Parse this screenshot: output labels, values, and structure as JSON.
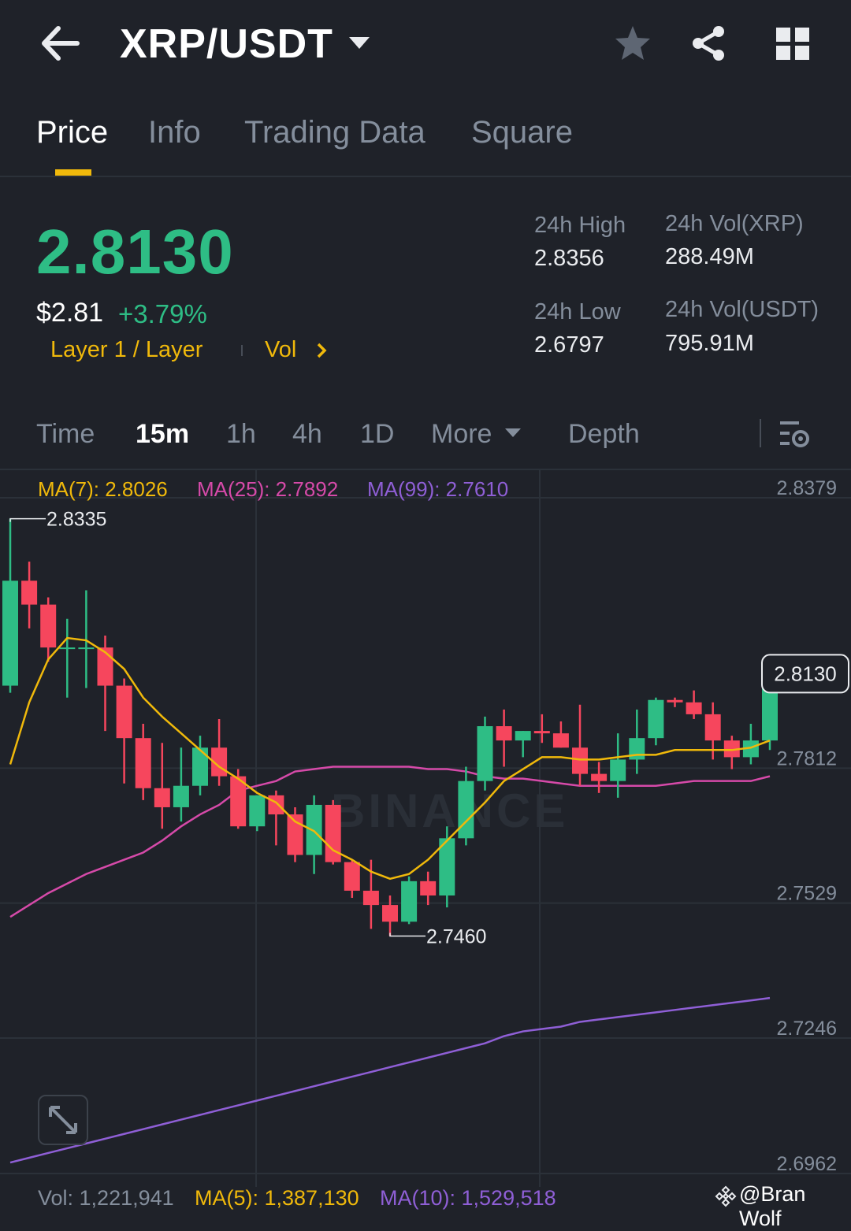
{
  "header": {
    "pair": "XRP/USDT"
  },
  "tabs": [
    {
      "label": "Price",
      "active": true
    },
    {
      "label": "Info",
      "active": false
    },
    {
      "label": "Trading Data",
      "active": false
    },
    {
      "label": "Square",
      "active": false
    }
  ],
  "ticker": {
    "last_price": "2.8130",
    "usd_price": "$2.81",
    "change_pct": "+3.79%",
    "tag_layer": "Layer 1 / Layer",
    "tag_vol": "Vol",
    "high_label": "24h High",
    "high_value": "2.8356",
    "low_label": "24h Low",
    "low_value": "2.6797",
    "vol_xrp_label": "24h Vol(XRP)",
    "vol_xrp_value": "288.49M",
    "vol_usdt_label": "24h Vol(USDT)",
    "vol_usdt_value": "795.91M"
  },
  "timeframes": {
    "time": "Time",
    "m15": "15m",
    "h1": "1h",
    "h4": "4h",
    "d1": "1D",
    "more": "More",
    "depth": "Depth",
    "active": "15m"
  },
  "indicators": {
    "ma7": "MA(7): 2.8026",
    "ma25": "MA(25): 2.7892",
    "ma99": "MA(99): 2.7610",
    "vol": "Vol: 1,221,941",
    "vol_ma5": "MA(5): 1,387,130",
    "vol_ma10": "MA(10): 1,529,518"
  },
  "colors": {
    "up": "#2ebd85",
    "down": "#f6465d",
    "accent": "#f0b90b",
    "ma7": "#f0b90b",
    "ma25": "#d64aa9",
    "ma99": "#8f5fd6"
  },
  "watermark": "BINANCE",
  "credit": "@Bran Wolf",
  "chart_data": {
    "type": "candlestick",
    "interval": "15m",
    "y_ticks": [
      2.8379,
      2.7812,
      2.7529,
      2.7246,
      2.6962
    ],
    "ylim": [
      2.6962,
      2.8379
    ],
    "current_price_label": "2.8130",
    "high_marker": "2.8335",
    "low_marker": "2.7460",
    "candles": [
      [
        2.7985,
        2.8335,
        2.797,
        2.8205
      ],
      [
        2.8205,
        2.8245,
        2.8105,
        2.8155
      ],
      [
        2.8155,
        2.817,
        2.8035,
        2.8065
      ],
      [
        2.8065,
        2.8125,
        2.796,
        2.8065
      ],
      [
        2.8065,
        2.8185,
        2.798,
        2.8065
      ],
      [
        2.8065,
        2.809,
        2.789,
        2.7985
      ],
      [
        2.7985,
        2.8,
        2.778,
        2.7875
      ],
      [
        2.7875,
        2.7905,
        2.7745,
        2.777
      ],
      [
        2.777,
        2.7865,
        2.7685,
        2.773
      ],
      [
        2.773,
        2.7855,
        2.77,
        2.7775
      ],
      [
        2.7775,
        2.788,
        2.7755,
        2.7855
      ],
      [
        2.7855,
        2.7915,
        2.7775,
        2.7795
      ],
      [
        2.7795,
        2.781,
        2.7685,
        2.769
      ],
      [
        2.769,
        2.7755,
        2.768,
        2.7755
      ],
      [
        2.7755,
        2.7765,
        2.765,
        2.7715
      ],
      [
        2.7715,
        2.773,
        2.7615,
        2.763
      ],
      [
        2.763,
        2.7755,
        2.759,
        2.7735
      ],
      [
        2.7735,
        2.7745,
        2.761,
        2.7615
      ],
      [
        2.7615,
        2.762,
        2.754,
        2.7555
      ],
      [
        2.7555,
        2.762,
        2.7475,
        2.7525
      ],
      [
        2.7525,
        2.7545,
        2.746,
        2.749
      ],
      [
        2.749,
        2.7585,
        2.7485,
        2.7575
      ],
      [
        2.7575,
        2.7595,
        2.7525,
        2.7545
      ],
      [
        2.7545,
        2.769,
        2.752,
        2.7665
      ],
      [
        2.7665,
        2.7815,
        2.765,
        2.7785
      ],
      [
        2.7785,
        2.792,
        2.7765,
        2.79
      ],
      [
        2.79,
        2.7935,
        2.7815,
        2.787
      ],
      [
        2.787,
        2.789,
        2.7835,
        2.789
      ],
      [
        2.789,
        2.7925,
        2.7865,
        2.7885
      ],
      [
        2.7885,
        2.791,
        2.7855,
        2.7855
      ],
      [
        2.7855,
        2.7945,
        2.7775,
        2.78
      ],
      [
        2.78,
        2.7825,
        2.776,
        2.7785
      ],
      [
        2.7785,
        2.7885,
        2.775,
        2.783
      ],
      [
        2.783,
        2.7935,
        2.78,
        2.7875
      ],
      [
        2.7875,
        2.796,
        2.786,
        2.7955
      ],
      [
        2.7955,
        2.796,
        2.794,
        2.795
      ],
      [
        2.795,
        2.7975,
        2.7915,
        2.7925
      ],
      [
        2.7925,
        2.795,
        2.783,
        2.787
      ],
      [
        2.787,
        2.788,
        2.781,
        2.7835
      ],
      [
        2.7835,
        2.7905,
        2.782,
        2.787
      ],
      [
        2.787,
        2.802,
        2.785,
        2.801
      ]
    ],
    "ma7": [
      2.782,
      2.795,
      2.804,
      2.8085,
      2.808,
      2.8055,
      2.802,
      2.796,
      2.792,
      2.7885,
      2.785,
      2.7815,
      2.779,
      2.776,
      2.774,
      2.77,
      2.768,
      2.764,
      2.762,
      2.7595,
      2.758,
      2.759,
      2.762,
      2.766,
      2.77,
      2.774,
      2.7785,
      2.781,
      2.7835,
      2.7835,
      2.783,
      2.783,
      2.7835,
      2.784,
      2.784,
      2.785,
      2.785,
      2.785,
      2.785,
      2.7855,
      2.787
    ],
    "ma25": [
      2.75,
      2.7525,
      2.755,
      2.757,
      2.759,
      2.7605,
      2.762,
      2.7635,
      2.766,
      2.769,
      2.7715,
      2.7735,
      2.7765,
      2.7775,
      2.7785,
      2.7805,
      2.781,
      2.7815,
      2.7815,
      2.7815,
      2.7815,
      2.7815,
      2.781,
      2.781,
      2.7805,
      2.7795,
      2.779,
      2.779,
      2.7785,
      2.778,
      2.7775,
      2.7775,
      2.7775,
      2.7775,
      2.7775,
      2.778,
      2.7785,
      2.7785,
      2.7785,
      2.7785,
      2.7795
    ],
    "ma99": [
      2.6985,
      2.6995,
      2.7005,
      2.7015,
      2.7025,
      2.7035,
      2.7045,
      2.7055,
      2.7065,
      2.7075,
      2.7085,
      2.7095,
      2.7105,
      2.7115,
      2.7125,
      2.7135,
      2.7145,
      2.7155,
      2.7165,
      2.7175,
      2.7185,
      2.7195,
      2.7205,
      2.7215,
      2.7225,
      2.7235,
      2.725,
      2.726,
      2.7265,
      2.727,
      2.728,
      2.7285,
      2.729,
      2.7295,
      2.73,
      2.7305,
      2.731,
      2.7315,
      2.732,
      2.7325,
      2.733
    ]
  }
}
